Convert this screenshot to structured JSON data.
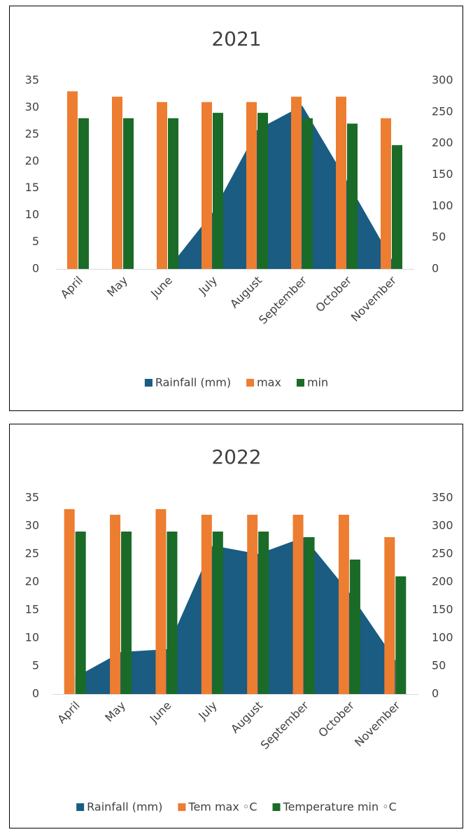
{
  "chart_data": [
    {
      "type": "combo",
      "title": "2021",
      "categories": [
        "April",
        "May",
        "June",
        "July",
        "August",
        "September",
        "October",
        "November"
      ],
      "series": [
        {
          "name": "Rainfall (mm)",
          "type": "area",
          "axis": "y2",
          "color": "#1a5c82",
          "values": [
            0,
            0,
            0,
            90,
            222,
            260,
            140,
            15
          ]
        },
        {
          "name": "max",
          "type": "bar",
          "color": "#ed7d31",
          "values": [
            33,
            32,
            31,
            31,
            31,
            32,
            32,
            28
          ]
        },
        {
          "name": "min",
          "type": "bar",
          "color": "#1b6b28",
          "values": [
            28,
            28,
            28,
            29,
            29,
            28,
            27,
            23
          ]
        }
      ],
      "ylim": [
        0,
        35
      ],
      "yticks": [
        0,
        5,
        10,
        15,
        20,
        25,
        30,
        35
      ],
      "y2lim": [
        0,
        300
      ],
      "y2ticks": [
        0,
        50,
        100,
        150,
        200,
        250,
        300
      ],
      "legend": "bottom"
    },
    {
      "type": "combo",
      "title": "2022",
      "categories": [
        "April",
        "May",
        "June",
        "July",
        "August",
        "September",
        "October",
        "November"
      ],
      "series": [
        {
          "name": "Rainfall (mm)",
          "type": "area",
          "axis": "y2",
          "color": "#1a5c82",
          "values": [
            30,
            75,
            80,
            265,
            250,
            280,
            180,
            60
          ]
        },
        {
          "name": "Tem max ◦C",
          "type": "bar",
          "color": "#ed7d31",
          "values": [
            33,
            32,
            33,
            32,
            32,
            32,
            32,
            28
          ]
        },
        {
          "name": "Temperature min ◦C",
          "type": "bar",
          "color": "#1b6b28",
          "values": [
            29,
            29,
            29,
            29,
            29,
            28,
            24,
            21
          ]
        }
      ],
      "ylim": [
        0,
        35
      ],
      "yticks": [
        0,
        5,
        10,
        15,
        20,
        25,
        30,
        35
      ],
      "y2lim": [
        0,
        350
      ],
      "y2ticks": [
        0,
        50,
        100,
        150,
        200,
        250,
        300,
        350
      ],
      "legend": "bottom"
    }
  ]
}
